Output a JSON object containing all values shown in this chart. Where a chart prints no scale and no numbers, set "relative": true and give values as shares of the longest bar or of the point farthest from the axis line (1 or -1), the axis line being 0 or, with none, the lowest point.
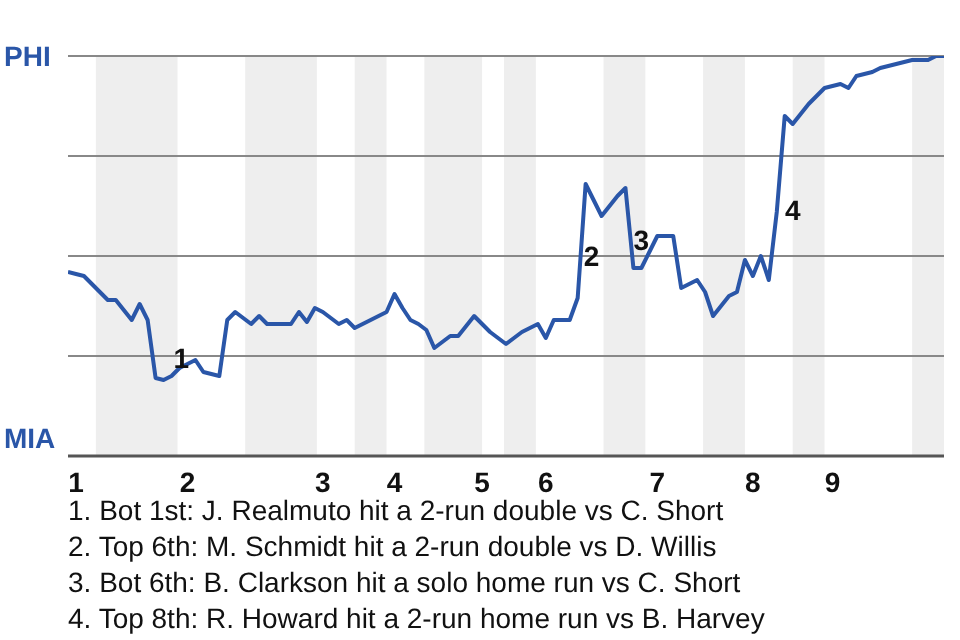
{
  "chart_data": {
    "type": "line",
    "relative": true,
    "categories": [
      null,
      "1",
      null,
      null,
      null,
      null,
      null,
      null,
      null,
      null,
      null,
      null,
      null,
      null,
      null,
      "2",
      null,
      null,
      null,
      null,
      null,
      null,
      null,
      null,
      null,
      null,
      null,
      null,
      null,
      null,
      null,
      null,
      "3",
      null,
      null,
      null,
      null,
      null,
      null,
      null,
      null,
      "4",
      null,
      null,
      null,
      null,
      null,
      null,
      null,
      null,
      null,
      null,
      "5",
      null,
      null,
      null,
      null,
      null,
      null,
      null,
      "6",
      null,
      null,
      null,
      null,
      null,
      null,
      null,
      null,
      null,
      null,
      null,
      null,
      null,
      "7",
      null,
      null,
      null,
      null,
      null,
      null,
      null,
      null,
      null,
      null,
      null,
      "8",
      null,
      null,
      null,
      null,
      null,
      null,
      null,
      null,
      null,
      "9",
      null,
      null,
      null,
      null,
      null,
      null,
      null,
      null,
      null,
      null,
      null,
      null,
      null,
      null
    ],
    "series": [
      {
        "color": "#2a56a8",
        "values": [
          0.46,
          0.455,
          0.45,
          0.43,
          0.41,
          0.39,
          0.39,
          0.365,
          0.34,
          0.38,
          0.34,
          0.195,
          0.19,
          0.2,
          0.22,
          0.23,
          0.24,
          0.21,
          0.205,
          0.2,
          0.34,
          0.36,
          0.345,
          0.33,
          0.35,
          0.33,
          0.33,
          0.33,
          0.33,
          0.36,
          0.335,
          0.37,
          0.36,
          0.345,
          0.33,
          0.34,
          0.32,
          0.33,
          0.34,
          0.35,
          0.36,
          0.405,
          0.37,
          0.34,
          0.33,
          0.315,
          0.27,
          0.285,
          0.3,
          0.3,
          0.325,
          0.35,
          0.33,
          0.31,
          0.295,
          0.28,
          0.295,
          0.31,
          0.32,
          0.33,
          0.295,
          0.34,
          0.34,
          0.34,
          0.395,
          0.68,
          0.64,
          0.6,
          0.625,
          0.65,
          0.67,
          0.47,
          0.47,
          0.51,
          0.55,
          0.55,
          0.55,
          0.42,
          0.43,
          0.44,
          0.41,
          0.35,
          0.375,
          0.4,
          0.41,
          0.49,
          0.45,
          0.5,
          0.44,
          0.61,
          0.85,
          0.83,
          0.855,
          0.88,
          0.9,
          0.92,
          0.925,
          0.93,
          0.92,
          0.95,
          0.955,
          0.96,
          0.97,
          0.975,
          0.98,
          0.985,
          0.99,
          0.99,
          0.99,
          1,
          1
        ]
      }
    ],
    "grid": false,
    "marker": "none",
    "line_style": "solid",
    "legend": false,
    "ref_lines": [
      {
        "axis": "y",
        "value": 0.25,
        "color": "#888888"
      },
      {
        "axis": "y",
        "value": 0.5,
        "color": "#888888"
      },
      {
        "axis": "y",
        "value": 0.75,
        "color": "#888888"
      },
      {
        "axis": "y",
        "value": 1,
        "color": "#888888"
      }
    ],
    "annotations": [
      "PHI",
      "MIA",
      "2",
      "3",
      "4",
      {
        "text": "1",
        "y": 0.195
      },
      "1. Bot 1st: J. Realmuto hit a 2-run double vs C. Short",
      "2. Top 6th: M. Schmidt hit a 2-run double vs D. Willis",
      "3. Bot 6th: B. Clarkson hit a solo home run vs C. Short",
      "4. Top 8th: R. Howard hit a 2-run home run vs B. Harvey"
    ]
  }
}
